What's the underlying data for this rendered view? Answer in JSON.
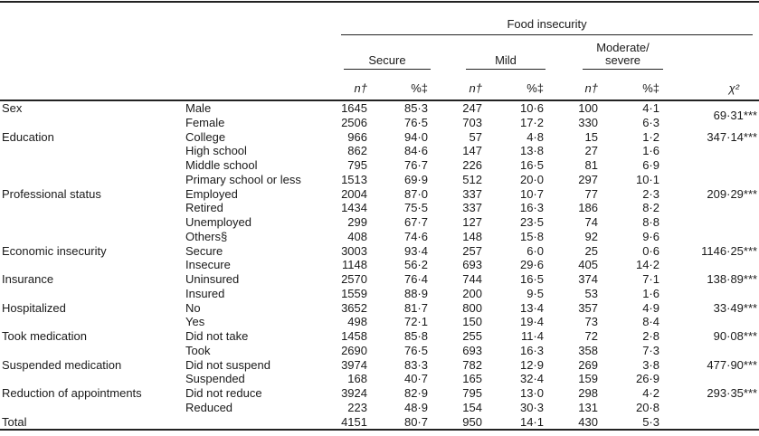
{
  "table": {
    "spanner": "Food insecurity",
    "groups": {
      "secure": "Secure",
      "mild": "Mild",
      "modsev_line1": "Moderate/",
      "modsev_line2": "severe"
    },
    "subheaders": {
      "n": "n†",
      "pct": "%‡",
      "chi2": "χ²"
    },
    "sections": [
      {
        "category": "Sex",
        "chi2": "69·31***",
        "rows": [
          {
            "label": "Male",
            "values": [
              "1645",
              "85·3",
              "247",
              "10·6",
              "100",
              "4·1"
            ]
          },
          {
            "label": "Female",
            "values": [
              "2506",
              "76·5",
              "703",
              "17·2",
              "330",
              "6·3"
            ]
          }
        ]
      },
      {
        "category": "Education",
        "chi2": "347·14***",
        "rows": [
          {
            "label": "College",
            "values": [
              "966",
              "94·0",
              "57",
              "4·8",
              "15",
              "1·2"
            ]
          },
          {
            "label": "High school",
            "values": [
              "862",
              "84·6",
              "147",
              "13·8",
              "27",
              "1·6"
            ]
          },
          {
            "label": "Middle school",
            "values": [
              "795",
              "76·7",
              "226",
              "16·5",
              "81",
              "6·9"
            ]
          },
          {
            "label": "Primary school or less",
            "values": [
              "1513",
              "69·9",
              "512",
              "20·0",
              "297",
              "10·1"
            ]
          }
        ]
      },
      {
        "category": "Professional status",
        "chi2": "209·29***",
        "rows": [
          {
            "label": "Employed",
            "values": [
              "2004",
              "87·0",
              "337",
              "10·7",
              "77",
              "2·3"
            ]
          },
          {
            "label": "Retired",
            "values": [
              "1434",
              "75·5",
              "337",
              "16·3",
              "186",
              "8·2"
            ]
          },
          {
            "label": "Unemployed",
            "values": [
              "299",
              "67·7",
              "127",
              "23·5",
              "74",
              "8·8"
            ]
          },
          {
            "label": "Others§",
            "values": [
              "408",
              "74·6",
              "148",
              "15·8",
              "92",
              "9·6"
            ]
          }
        ]
      },
      {
        "category": "Economic insecurity",
        "chi2": "1146·25***",
        "rows": [
          {
            "label": "Secure",
            "values": [
              "3003",
              "93·4",
              "257",
              "6·0",
              "25",
              "0·6"
            ]
          },
          {
            "label": "Insecure",
            "values": [
              "1148",
              "56·2",
              "693",
              "29·6",
              "405",
              "14·2"
            ]
          }
        ]
      },
      {
        "category": "Insurance",
        "chi2": "138·89***",
        "rows": [
          {
            "label": "Uninsured",
            "values": [
              "2570",
              "76·4",
              "744",
              "16·5",
              "374",
              "7·1"
            ]
          },
          {
            "label": "Insured",
            "values": [
              "1559",
              "88·9",
              "200",
              "9·5",
              "53",
              "1·6"
            ]
          }
        ]
      },
      {
        "category": "Hospitalized",
        "chi2": "33·49***",
        "rows": [
          {
            "label": "No",
            "values": [
              "3652",
              "81·7",
              "800",
              "13·4",
              "357",
              "4·9"
            ]
          },
          {
            "label": "Yes",
            "values": [
              "498",
              "72·1",
              "150",
              "19·4",
              "73",
              "8·4"
            ]
          }
        ]
      },
      {
        "category": "Took medication",
        "chi2": "90·08***",
        "rows": [
          {
            "label": "Did not take",
            "values": [
              "1458",
              "85·8",
              "255",
              "11·4",
              "72",
              "2·8"
            ]
          },
          {
            "label": "Took",
            "values": [
              "2690",
              "76·5",
              "693",
              "16·3",
              "358",
              "7·3"
            ]
          }
        ]
      },
      {
        "category": "Suspended medication",
        "chi2": "477·90***",
        "rows": [
          {
            "label": "Did not suspend",
            "values": [
              "3974",
              "83·3",
              "782",
              "12·9",
              "269",
              "3·8"
            ]
          },
          {
            "label": "Suspended",
            "values": [
              "168",
              "40·7",
              "165",
              "32·4",
              "159",
              "26·9"
            ]
          }
        ]
      },
      {
        "category": "Reduction of appointments",
        "chi2": "293·35***",
        "rows": [
          {
            "label": "Did not reduce",
            "values": [
              "3924",
              "82·9",
              "795",
              "13·0",
              "298",
              "4·2"
            ]
          },
          {
            "label": "Reduced",
            "values": [
              "223",
              "48·9",
              "154",
              "30·3",
              "131",
              "20·8"
            ]
          }
        ]
      },
      {
        "category": "Total",
        "chi2": "",
        "rows": [
          {
            "label": "",
            "values": [
              "4151",
              "80·7",
              "950",
              "14·1",
              "430",
              "5·3"
            ]
          }
        ]
      }
    ]
  }
}
